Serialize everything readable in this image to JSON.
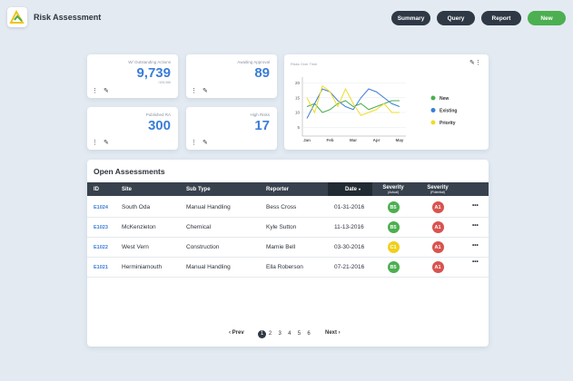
{
  "header": {
    "title": "Risk Assessment",
    "buttons": [
      "Summary",
      "Query",
      "Report",
      "New"
    ]
  },
  "kpis": [
    {
      "label": "W/ Outstanding Actions",
      "value": "9,739",
      "sub": "/105,986"
    },
    {
      "label": "Awaiting Approval",
      "value": "89"
    },
    {
      "label": "Published RA",
      "value": "300"
    },
    {
      "label": "High Risks",
      "value": "17"
    }
  ],
  "risks_chart": {
    "type": "line",
    "title": "Risks Over Time",
    "categories": [
      "Jan",
      null,
      null,
      "Feb",
      null,
      null,
      "Mar",
      null,
      null,
      "Apr",
      null,
      null,
      "May"
    ],
    "ylim": [
      2,
      22
    ],
    "yticks": [
      5,
      10,
      15,
      20
    ],
    "series": [
      {
        "name": "New",
        "color": "#4caf50",
        "values": [
          12,
          13,
          10,
          11,
          13,
          14,
          12,
          13,
          11,
          12,
          13,
          14,
          14
        ]
      },
      {
        "name": "Existing",
        "color": "#3b7dd8",
        "values": [
          8,
          13,
          18,
          17,
          14,
          12,
          11,
          15,
          18,
          17,
          15,
          13,
          12
        ]
      },
      {
        "name": "Priority",
        "color": "#f0dc2a",
        "values": [
          15,
          10,
          19,
          17,
          12,
          18,
          13,
          9,
          10,
          11,
          13,
          10,
          10
        ]
      }
    ]
  },
  "table": {
    "title": "Open Assessments",
    "columns": [
      {
        "label": "ID"
      },
      {
        "label": "Site"
      },
      {
        "label": "Sub Type"
      },
      {
        "label": "Reporter"
      },
      {
        "label": "Date"
      },
      {
        "label": "Severity",
        "sub": "(Actual)"
      },
      {
        "label": "Severity",
        "sub": "(Potential)"
      }
    ],
    "rows": [
      [
        "E1024",
        "South Oda",
        "Manual Handling",
        "Bess Cross",
        "01-31-2016",
        "B5",
        "A1"
      ],
      [
        "E1023",
        "McKenzieton",
        "Chemical",
        "Kyle Sutton",
        "11-13-2016",
        "B5",
        "A1"
      ],
      [
        "E1022",
        "West Vern",
        "Construction",
        "Mamie Bell",
        "03-30-2016",
        "C1",
        "A1"
      ],
      [
        "E1021",
        "Herminiamouth",
        "Manual Handling",
        "Ella Roberson",
        "07-21-2016",
        "B5",
        "A1"
      ]
    ]
  },
  "pagination": {
    "prev": "Prev",
    "pages": [
      1,
      2,
      3,
      4,
      5,
      6
    ],
    "next": "Next"
  }
}
